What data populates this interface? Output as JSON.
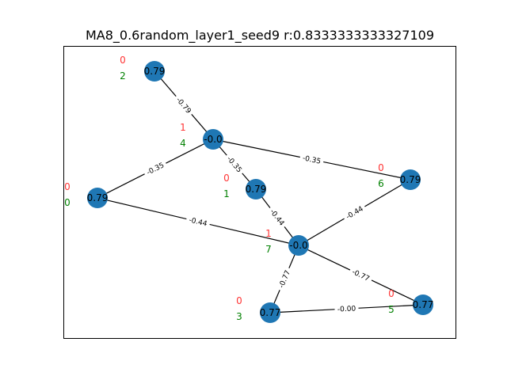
{
  "title": "MA8_0.6random_layer1_seed9  r:0.8333333333327109",
  "colors": {
    "node": "#1f77b4",
    "edge": "#000000",
    "red_annotation": "#ff3333",
    "green_annotation": "#008000",
    "frame": "#000000"
  },
  "nodes": [
    {
      "id": "n0",
      "label": "0.79",
      "red": "0",
      "green": "0"
    },
    {
      "id": "n1",
      "label": "0.79",
      "red": "0",
      "green": "1"
    },
    {
      "id": "n2",
      "label": "0.79",
      "red": "0",
      "green": "2"
    },
    {
      "id": "n3",
      "label": "0.77",
      "red": "0",
      "green": "3"
    },
    {
      "id": "n4",
      "label": "-0.0",
      "red": "1",
      "green": "4"
    },
    {
      "id": "n5",
      "label": "0.77",
      "red": "0",
      "green": "5"
    },
    {
      "id": "n6",
      "label": "0.79",
      "red": "0",
      "green": "6"
    },
    {
      "id": "n7",
      "label": "-0.0",
      "red": "1",
      "green": "7"
    }
  ],
  "edges": [
    {
      "source": "n2",
      "target": "n4",
      "label": "-0.79"
    },
    {
      "source": "n4",
      "target": "n0",
      "label": "-0.35"
    },
    {
      "source": "n4",
      "target": "n1",
      "label": "-0.35"
    },
    {
      "source": "n4",
      "target": "n6",
      "label": "-0.35"
    },
    {
      "source": "n0",
      "target": "n7",
      "label": "-0.44"
    },
    {
      "source": "n1",
      "target": "n7",
      "label": "-0.44"
    },
    {
      "source": "n6",
      "target": "n7",
      "label": "-0.44"
    },
    {
      "source": "n7",
      "target": "n3",
      "label": "-0.77"
    },
    {
      "source": "n7",
      "target": "n5",
      "label": "-0.77"
    },
    {
      "source": "n3",
      "target": "n5",
      "label": "-0.00"
    }
  ]
}
